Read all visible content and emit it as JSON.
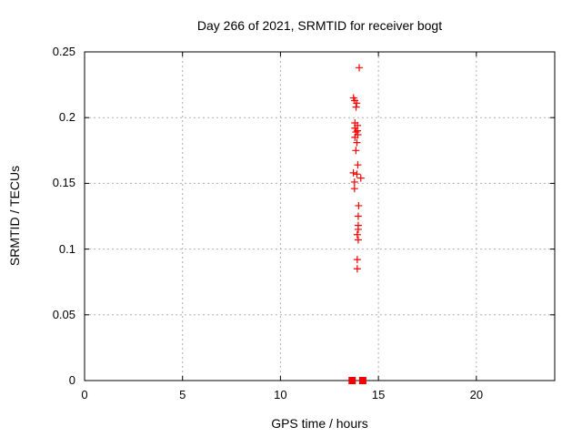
{
  "chart_data": {
    "type": "scatter",
    "title": "Day 266 of 2021, SRMTID for receiver bogt",
    "xlabel": "GPS time / hours",
    "ylabel": "SRMTID / TECUs",
    "grid": "on",
    "legend": "none",
    "colors": {
      "marker": "#ff0000",
      "grid_line": "#b0b0b0",
      "axis": "#000000",
      "background": "#ffffff"
    },
    "x_axis": {
      "range": [
        0,
        24
      ],
      "ticks": [
        0,
        5,
        10,
        15,
        20
      ],
      "tick_labels": [
        "0",
        "5",
        "10",
        "15",
        "20"
      ]
    },
    "y_axis": {
      "range": [
        0,
        0.25
      ],
      "ticks": [
        0,
        0.05,
        0.1,
        0.15,
        0.2,
        0.25
      ],
      "tick_labels": [
        "0",
        "0.05",
        "0.1",
        "0.15",
        "0.2",
        "0.25"
      ]
    },
    "series": [
      {
        "name": "SRMTID values",
        "marker": "plus",
        "color": "#ff0000",
        "points": [
          [
            14.02,
            0.238
          ],
          [
            13.73,
            0.215
          ],
          [
            13.79,
            0.213
          ],
          [
            13.89,
            0.211
          ],
          [
            13.86,
            0.208
          ],
          [
            13.8,
            0.196
          ],
          [
            13.93,
            0.194
          ],
          [
            13.8,
            0.192
          ],
          [
            13.93,
            0.19
          ],
          [
            13.85,
            0.189
          ],
          [
            13.95,
            0.187
          ],
          [
            13.8,
            0.185
          ],
          [
            13.9,
            0.181
          ],
          [
            13.85,
            0.175
          ],
          [
            13.95,
            0.164
          ],
          [
            13.72,
            0.158
          ],
          [
            13.9,
            0.157
          ],
          [
            14.1,
            0.154
          ],
          [
            13.78,
            0.151
          ],
          [
            13.78,
            0.146
          ],
          [
            13.99,
            0.133
          ],
          [
            13.97,
            0.125
          ],
          [
            13.97,
            0.118
          ],
          [
            13.97,
            0.115
          ],
          [
            13.92,
            0.111
          ],
          [
            13.97,
            0.107
          ],
          [
            13.92,
            0.092
          ],
          [
            13.92,
            0.085
          ]
        ]
      },
      {
        "name": "baseline markers",
        "marker": "filled-square",
        "color": "#ee0000",
        "points": [
          [
            13.66,
            0
          ],
          [
            14.2,
            0
          ]
        ]
      }
    ]
  }
}
